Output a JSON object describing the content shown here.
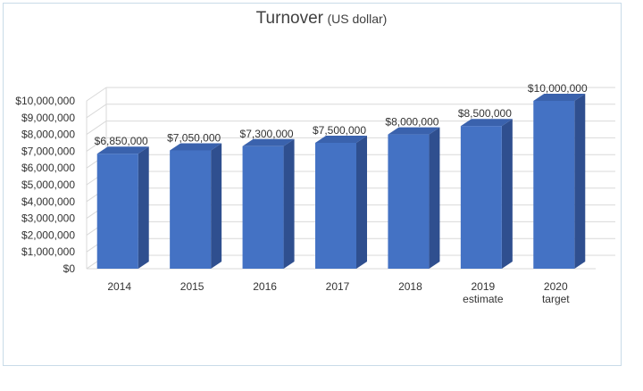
{
  "chart_data": {
    "type": "bar",
    "title": "Turnover",
    "subtitle": "(US dollar)",
    "categories": [
      [
        "2014"
      ],
      [
        "2015"
      ],
      [
        "2016"
      ],
      [
        "2017"
      ],
      [
        "2018"
      ],
      [
        "2019",
        "estimate"
      ],
      [
        "2020",
        "target"
      ]
    ],
    "values": [
      6850000,
      7050000,
      7300000,
      7500000,
      8000000,
      8500000,
      10000000
    ],
    "data_labels": [
      "$6,850,000",
      "$7,050,000",
      "$7,300,000",
      "$7,500,000",
      "$8,000,000",
      "$8,500,000",
      "$10,000,000"
    ],
    "ylim": [
      0,
      10000000
    ],
    "y_ticks": [
      "$0",
      "$1,000,000",
      "$2,000,000",
      "$3,000,000",
      "$4,000,000",
      "$5,000,000",
      "$6,000,000",
      "$7,000,000",
      "$8,000,000",
      "$9,000,000",
      "$10,000,000"
    ],
    "grid": true,
    "style": "3d",
    "colors": {
      "bar_front": "#4472c4",
      "bar_side": "#2f4f8f",
      "bar_top": "#3a62ad",
      "grid": "#d9d9d9"
    }
  }
}
